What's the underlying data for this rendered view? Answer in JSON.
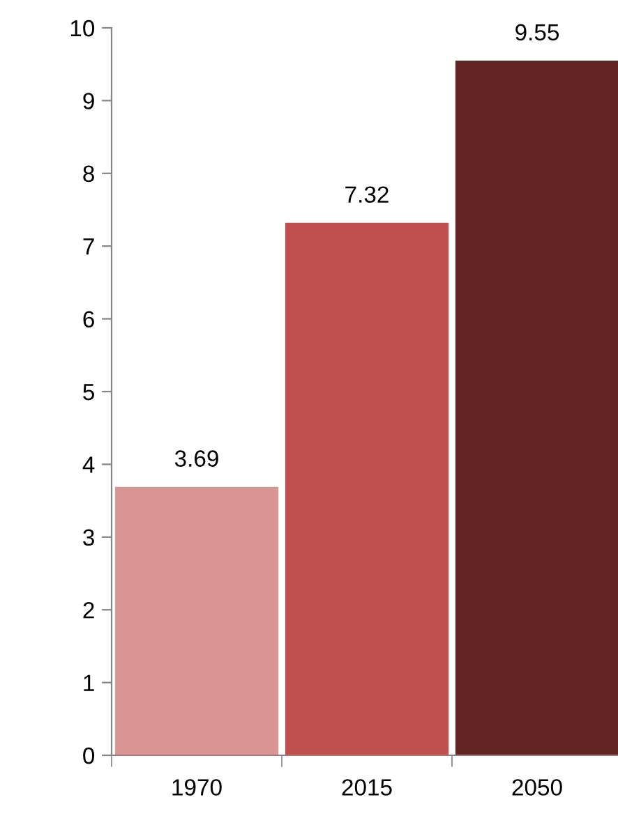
{
  "chart_data": {
    "type": "bar",
    "categories": [
      "1970",
      "2015",
      "2050"
    ],
    "values": [
      3.69,
      7.32,
      9.55
    ],
    "colors": [
      "#d99594",
      "#c0504d",
      "#632523"
    ],
    "ylim": [
      0,
      10
    ],
    "yticks": [
      0,
      1,
      2,
      3,
      4,
      5,
      6,
      7,
      8,
      9,
      10
    ],
    "grid": false,
    "data_labels": true
  }
}
